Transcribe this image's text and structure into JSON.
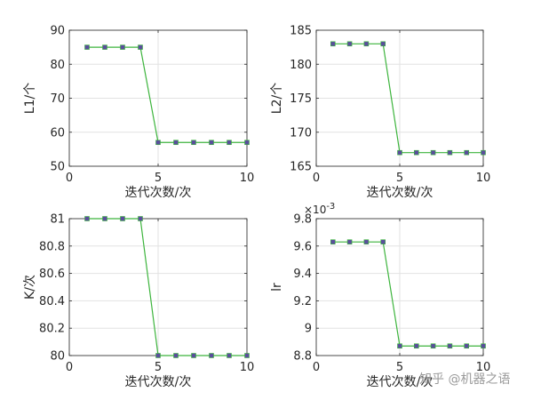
{
  "chart_data": [
    {
      "type": "line",
      "xlabel": "迭代次数/次",
      "ylabel": "L1/个",
      "xlim": [
        0,
        10
      ],
      "ylim": [
        50,
        90
      ],
      "xticks": [
        "0",
        "5",
        "10"
      ],
      "yticks": [
        "50",
        "60",
        "70",
        "80",
        "90"
      ],
      "grid": true,
      "x": [
        1,
        2,
        3,
        4,
        5,
        6,
        7,
        8,
        9,
        10
      ],
      "values": [
        85,
        85,
        85,
        85,
        57,
        57,
        57,
        57,
        57,
        57
      ]
    },
    {
      "type": "line",
      "xlabel": "迭代次数/次",
      "ylabel": "L2/个",
      "xlim": [
        0,
        10
      ],
      "ylim": [
        165,
        185
      ],
      "xticks": [
        "0",
        "5",
        "10"
      ],
      "yticks": [
        "165",
        "170",
        "175",
        "180",
        "185"
      ],
      "grid": true,
      "x": [
        1,
        2,
        3,
        4,
        5,
        6,
        7,
        8,
        9,
        10
      ],
      "values": [
        183,
        183,
        183,
        183,
        167,
        167,
        167,
        167,
        167,
        167
      ]
    },
    {
      "type": "line",
      "xlabel": "迭代次数/次",
      "ylabel": "K/次",
      "xlim": [
        0,
        10
      ],
      "ylim": [
        80,
        81
      ],
      "xticks": [
        "0",
        "5",
        "10"
      ],
      "yticks": [
        "80",
        "80.2",
        "80.4",
        "80.6",
        "80.8",
        "81"
      ],
      "grid": true,
      "x": [
        1,
        2,
        3,
        4,
        5,
        6,
        7,
        8,
        9,
        10
      ],
      "values": [
        81,
        81,
        81,
        81,
        80,
        80,
        80,
        80,
        80,
        80
      ]
    },
    {
      "type": "line",
      "xlabel": "迭代次数/次",
      "ylabel": "lr",
      "exponent_label": "×10",
      "exponent_power": "-3",
      "xlim": [
        0,
        10
      ],
      "ylim": [
        8.8,
        9.8
      ],
      "xticks": [
        "0",
        "5",
        "10"
      ],
      "yticks": [
        "8.8",
        "9",
        "9.2",
        "9.4",
        "9.6",
        "9.8"
      ],
      "grid": true,
      "x": [
        1,
        2,
        3,
        4,
        5,
        6,
        7,
        8,
        9,
        10
      ],
      "values": [
        9.63,
        9.63,
        9.63,
        9.63,
        8.87,
        8.87,
        8.87,
        8.87,
        8.87,
        8.87
      ]
    }
  ],
  "style": {
    "line_color": "#3cb43c",
    "marker_color": "#5a4e9c",
    "grid_color": "#e2e2e2",
    "axis_color": "#262626"
  },
  "watermark": "知乎 @机器之语"
}
